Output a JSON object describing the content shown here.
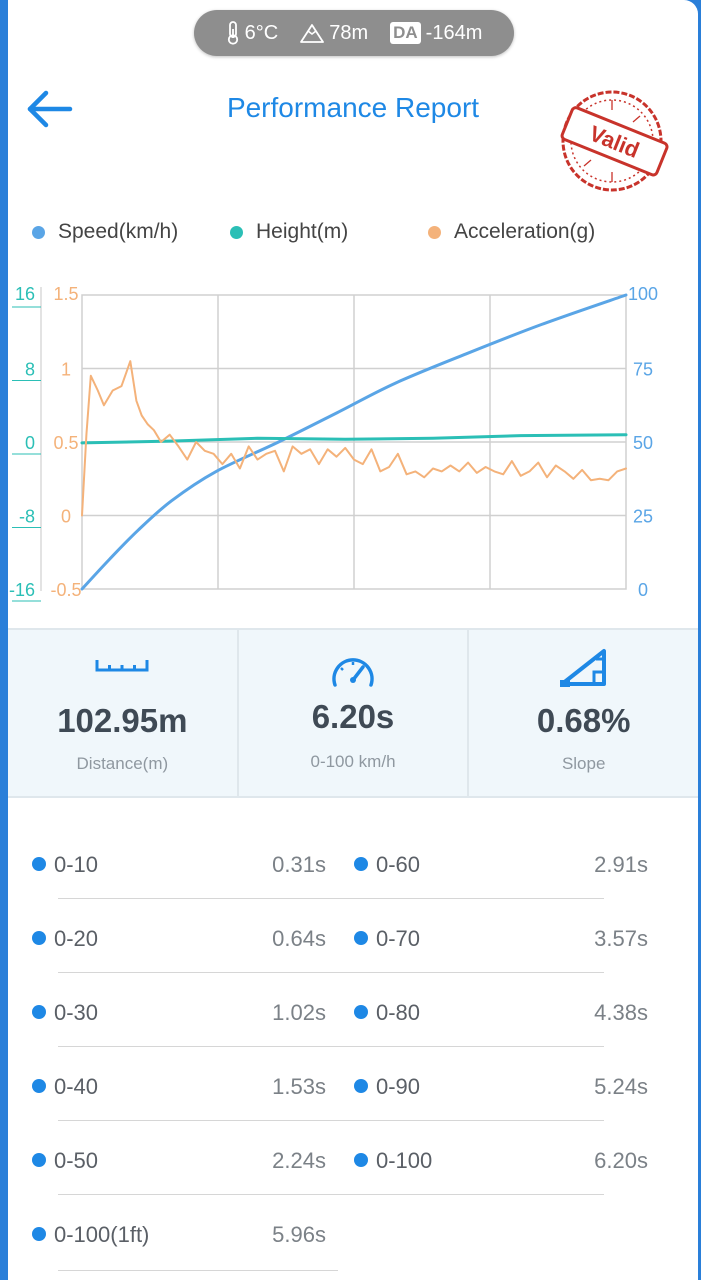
{
  "env": {
    "temperature": "6°C",
    "altitude": "78m",
    "da_badge": "DA",
    "density_altitude": "-164m",
    "icons": [
      "thermometer-icon",
      "mountain-icon"
    ]
  },
  "header": {
    "title": "Performance Report",
    "back_icon": "back-arrow-icon",
    "stamp_text": "Valid",
    "stamp_color": "#c8332b"
  },
  "legend": [
    {
      "name": "Speed(km/h)",
      "color": "#5aa5e6"
    },
    {
      "name": "Height(m)",
      "color": "#2bbfb6"
    },
    {
      "name": "Acceleration(g)",
      "color": "#f4b27a"
    }
  ],
  "chart_data": {
    "type": "line",
    "x_range": [
      0,
      6.2
    ],
    "grid": true,
    "axes": {
      "height": {
        "side": "left-outer",
        "ticks": [
          "16",
          "8",
          "0",
          "-8",
          "-16"
        ],
        "range": [
          -16,
          16
        ],
        "color": "#2bbfb6"
      },
      "acceleration": {
        "side": "left-inner",
        "ticks": [
          "1.5",
          "1",
          "0.5",
          "0",
          "-0.5"
        ],
        "range": [
          -0.5,
          1.5
        ],
        "color": "#f4b27a"
      },
      "speed": {
        "side": "right",
        "ticks": [
          "100",
          "75",
          "50",
          "25",
          "0"
        ],
        "range": [
          0,
          100
        ],
        "color": "#5aa5e6"
      }
    },
    "series": [
      {
        "name": "Speed(km/h)",
        "axis": "speed",
        "color": "#5aa5e6",
        "x": [
          0,
          0.31,
          0.64,
          1.02,
          1.53,
          2.24,
          2.91,
          3.57,
          4.38,
          5.24,
          6.2
        ],
        "y": [
          0,
          10,
          20,
          30,
          40,
          50,
          60,
          70,
          80,
          90,
          100
        ]
      },
      {
        "name": "Height(m)",
        "axis": "height",
        "color": "#2bbfb6",
        "x": [
          0,
          1,
          2,
          3,
          4,
          5,
          6.2
        ],
        "y": [
          -0.1,
          0.1,
          0.4,
          0.3,
          0.4,
          0.7,
          0.8
        ]
      },
      {
        "name": "Acceleration(g)",
        "axis": "acceleration",
        "color": "#f4b27a",
        "x": [
          0,
          0.05,
          0.1,
          0.18,
          0.25,
          0.35,
          0.45,
          0.55,
          0.62,
          0.68,
          0.75,
          0.82,
          0.9,
          1.0,
          1.1,
          1.2,
          1.3,
          1.4,
          1.5,
          1.6,
          1.7,
          1.8,
          1.9,
          2.0,
          2.1,
          2.2,
          2.3,
          2.4,
          2.5,
          2.6,
          2.7,
          2.8,
          2.9,
          3.0,
          3.1,
          3.2,
          3.3,
          3.4,
          3.5,
          3.6,
          3.7,
          3.8,
          3.9,
          4.0,
          4.1,
          4.2,
          4.3,
          4.4,
          4.5,
          4.6,
          4.7,
          4.8,
          4.9,
          5.0,
          5.1,
          5.2,
          5.3,
          5.4,
          5.5,
          5.6,
          5.7,
          5.8,
          5.9,
          6.0,
          6.1,
          6.2
        ],
        "y": [
          0,
          0.55,
          0.95,
          0.85,
          0.75,
          0.85,
          0.88,
          1.05,
          0.78,
          0.68,
          0.62,
          0.58,
          0.5,
          0.55,
          0.47,
          0.38,
          0.5,
          0.44,
          0.42,
          0.35,
          0.42,
          0.32,
          0.47,
          0.38,
          0.42,
          0.44,
          0.3,
          0.47,
          0.42,
          0.45,
          0.35,
          0.45,
          0.4,
          0.46,
          0.38,
          0.35,
          0.45,
          0.3,
          0.33,
          0.42,
          0.28,
          0.3,
          0.26,
          0.32,
          0.3,
          0.34,
          0.3,
          0.36,
          0.29,
          0.33,
          0.3,
          0.28,
          0.37,
          0.27,
          0.3,
          0.36,
          0.26,
          0.34,
          0.3,
          0.25,
          0.31,
          0.24,
          0.25,
          0.24,
          0.3,
          0.32
        ]
      }
    ]
  },
  "stats": [
    {
      "icon": "ruler-icon",
      "value": "102.95m",
      "label": "Distance(m)"
    },
    {
      "icon": "speedometer-icon",
      "value": "6.20s",
      "label": "0-100 km/h"
    },
    {
      "icon": "slope-icon",
      "value": "0.68%",
      "label": "Slope"
    }
  ],
  "splits": [
    {
      "name": "0-10",
      "time": "0.31s"
    },
    {
      "name": "0-20",
      "time": "0.64s"
    },
    {
      "name": "0-30",
      "time": "1.02s"
    },
    {
      "name": "0-40",
      "time": "1.53s"
    },
    {
      "name": "0-50",
      "time": "2.24s"
    },
    {
      "name": "0-60",
      "time": "2.91s"
    },
    {
      "name": "0-70",
      "time": "3.57s"
    },
    {
      "name": "0-80",
      "time": "4.38s"
    },
    {
      "name": "0-90",
      "time": "5.24s"
    },
    {
      "name": "0-100",
      "time": "6.20s"
    },
    {
      "name": "0-100(1ft)",
      "time": "5.96s"
    }
  ]
}
